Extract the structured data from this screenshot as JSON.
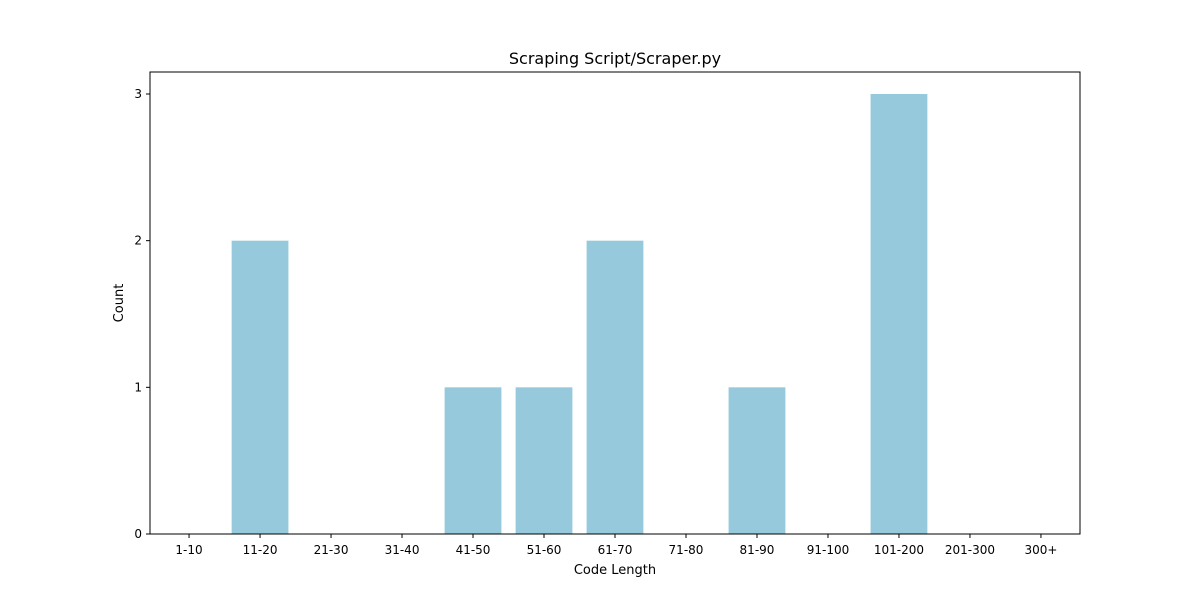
{
  "chart_data": {
    "type": "bar",
    "title": "Scraping Script/Scraper.py",
    "xlabel": "Code Length",
    "ylabel": "Count",
    "categories": [
      "1-10",
      "11-20",
      "21-30",
      "31-40",
      "41-50",
      "51-60",
      "61-70",
      "71-80",
      "81-90",
      "91-100",
      "101-200",
      "201-300",
      "300+"
    ],
    "values": [
      0,
      2,
      0,
      0,
      1,
      1,
      2,
      0,
      1,
      0,
      3,
      0,
      0
    ],
    "ylim": [
      0,
      3.15
    ],
    "yticks": [
      0,
      1,
      2,
      3
    ],
    "grid": false,
    "legend": "none",
    "bar_color": "#96c9dc"
  }
}
